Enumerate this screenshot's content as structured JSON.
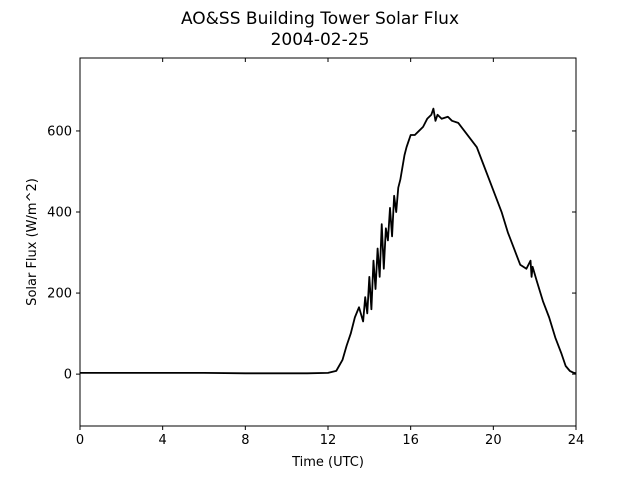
{
  "chart_data": {
    "type": "line",
    "title": "AO&SS Building Tower Solar Flux",
    "subtitle": "2004-02-25",
    "xlabel": "Time (UTC)",
    "ylabel": "Solar Flux (W/m^2)",
    "xlim": [
      0,
      24
    ],
    "ylim": [
      -128,
      780
    ],
    "xticks": [
      0,
      4,
      8,
      12,
      16,
      20,
      24
    ],
    "yticks": [
      0,
      200,
      400,
      600
    ],
    "grid": false,
    "line_color": "#000000",
    "series": [
      {
        "x": [
          0,
          2,
          4,
          6,
          8,
          10,
          11,
          12,
          12.4,
          12.7,
          12.9,
          13.1,
          13.3,
          13.5,
          13.7,
          13.8,
          13.9,
          14.0,
          14.1,
          14.2,
          14.3,
          14.4,
          14.5,
          14.6,
          14.7,
          14.8,
          14.9,
          15.0,
          15.1,
          15.2,
          15.3,
          15.4,
          15.5,
          15.6,
          15.7,
          15.8,
          15.9,
          16.0,
          16.2,
          16.4,
          16.6,
          16.8,
          17.0,
          17.1,
          17.2,
          17.3,
          17.5,
          17.8,
          18.0,
          18.3,
          18.6,
          18.9,
          19.2,
          19.5,
          19.8,
          20.1,
          20.4,
          20.7,
          21.0,
          21.3,
          21.6,
          21.8,
          21.85,
          21.9,
          22.1,
          22.4,
          22.7,
          23.0,
          23.3,
          23.5,
          23.7,
          23.9,
          24.0
        ],
        "y": [
          3,
          3,
          3,
          3,
          2,
          2,
          2,
          3,
          8,
          35,
          70,
          100,
          140,
          165,
          130,
          190,
          150,
          240,
          160,
          280,
          210,
          310,
          240,
          370,
          260,
          360,
          330,
          410,
          340,
          440,
          400,
          460,
          480,
          510,
          540,
          560,
          575,
          590,
          590,
          600,
          610,
          630,
          640,
          655,
          625,
          640,
          630,
          635,
          625,
          620,
          600,
          580,
          560,
          520,
          480,
          440,
          400,
          350,
          310,
          270,
          260,
          280,
          240,
          265,
          230,
          180,
          140,
          90,
          50,
          20,
          8,
          3,
          2
        ]
      }
    ]
  }
}
